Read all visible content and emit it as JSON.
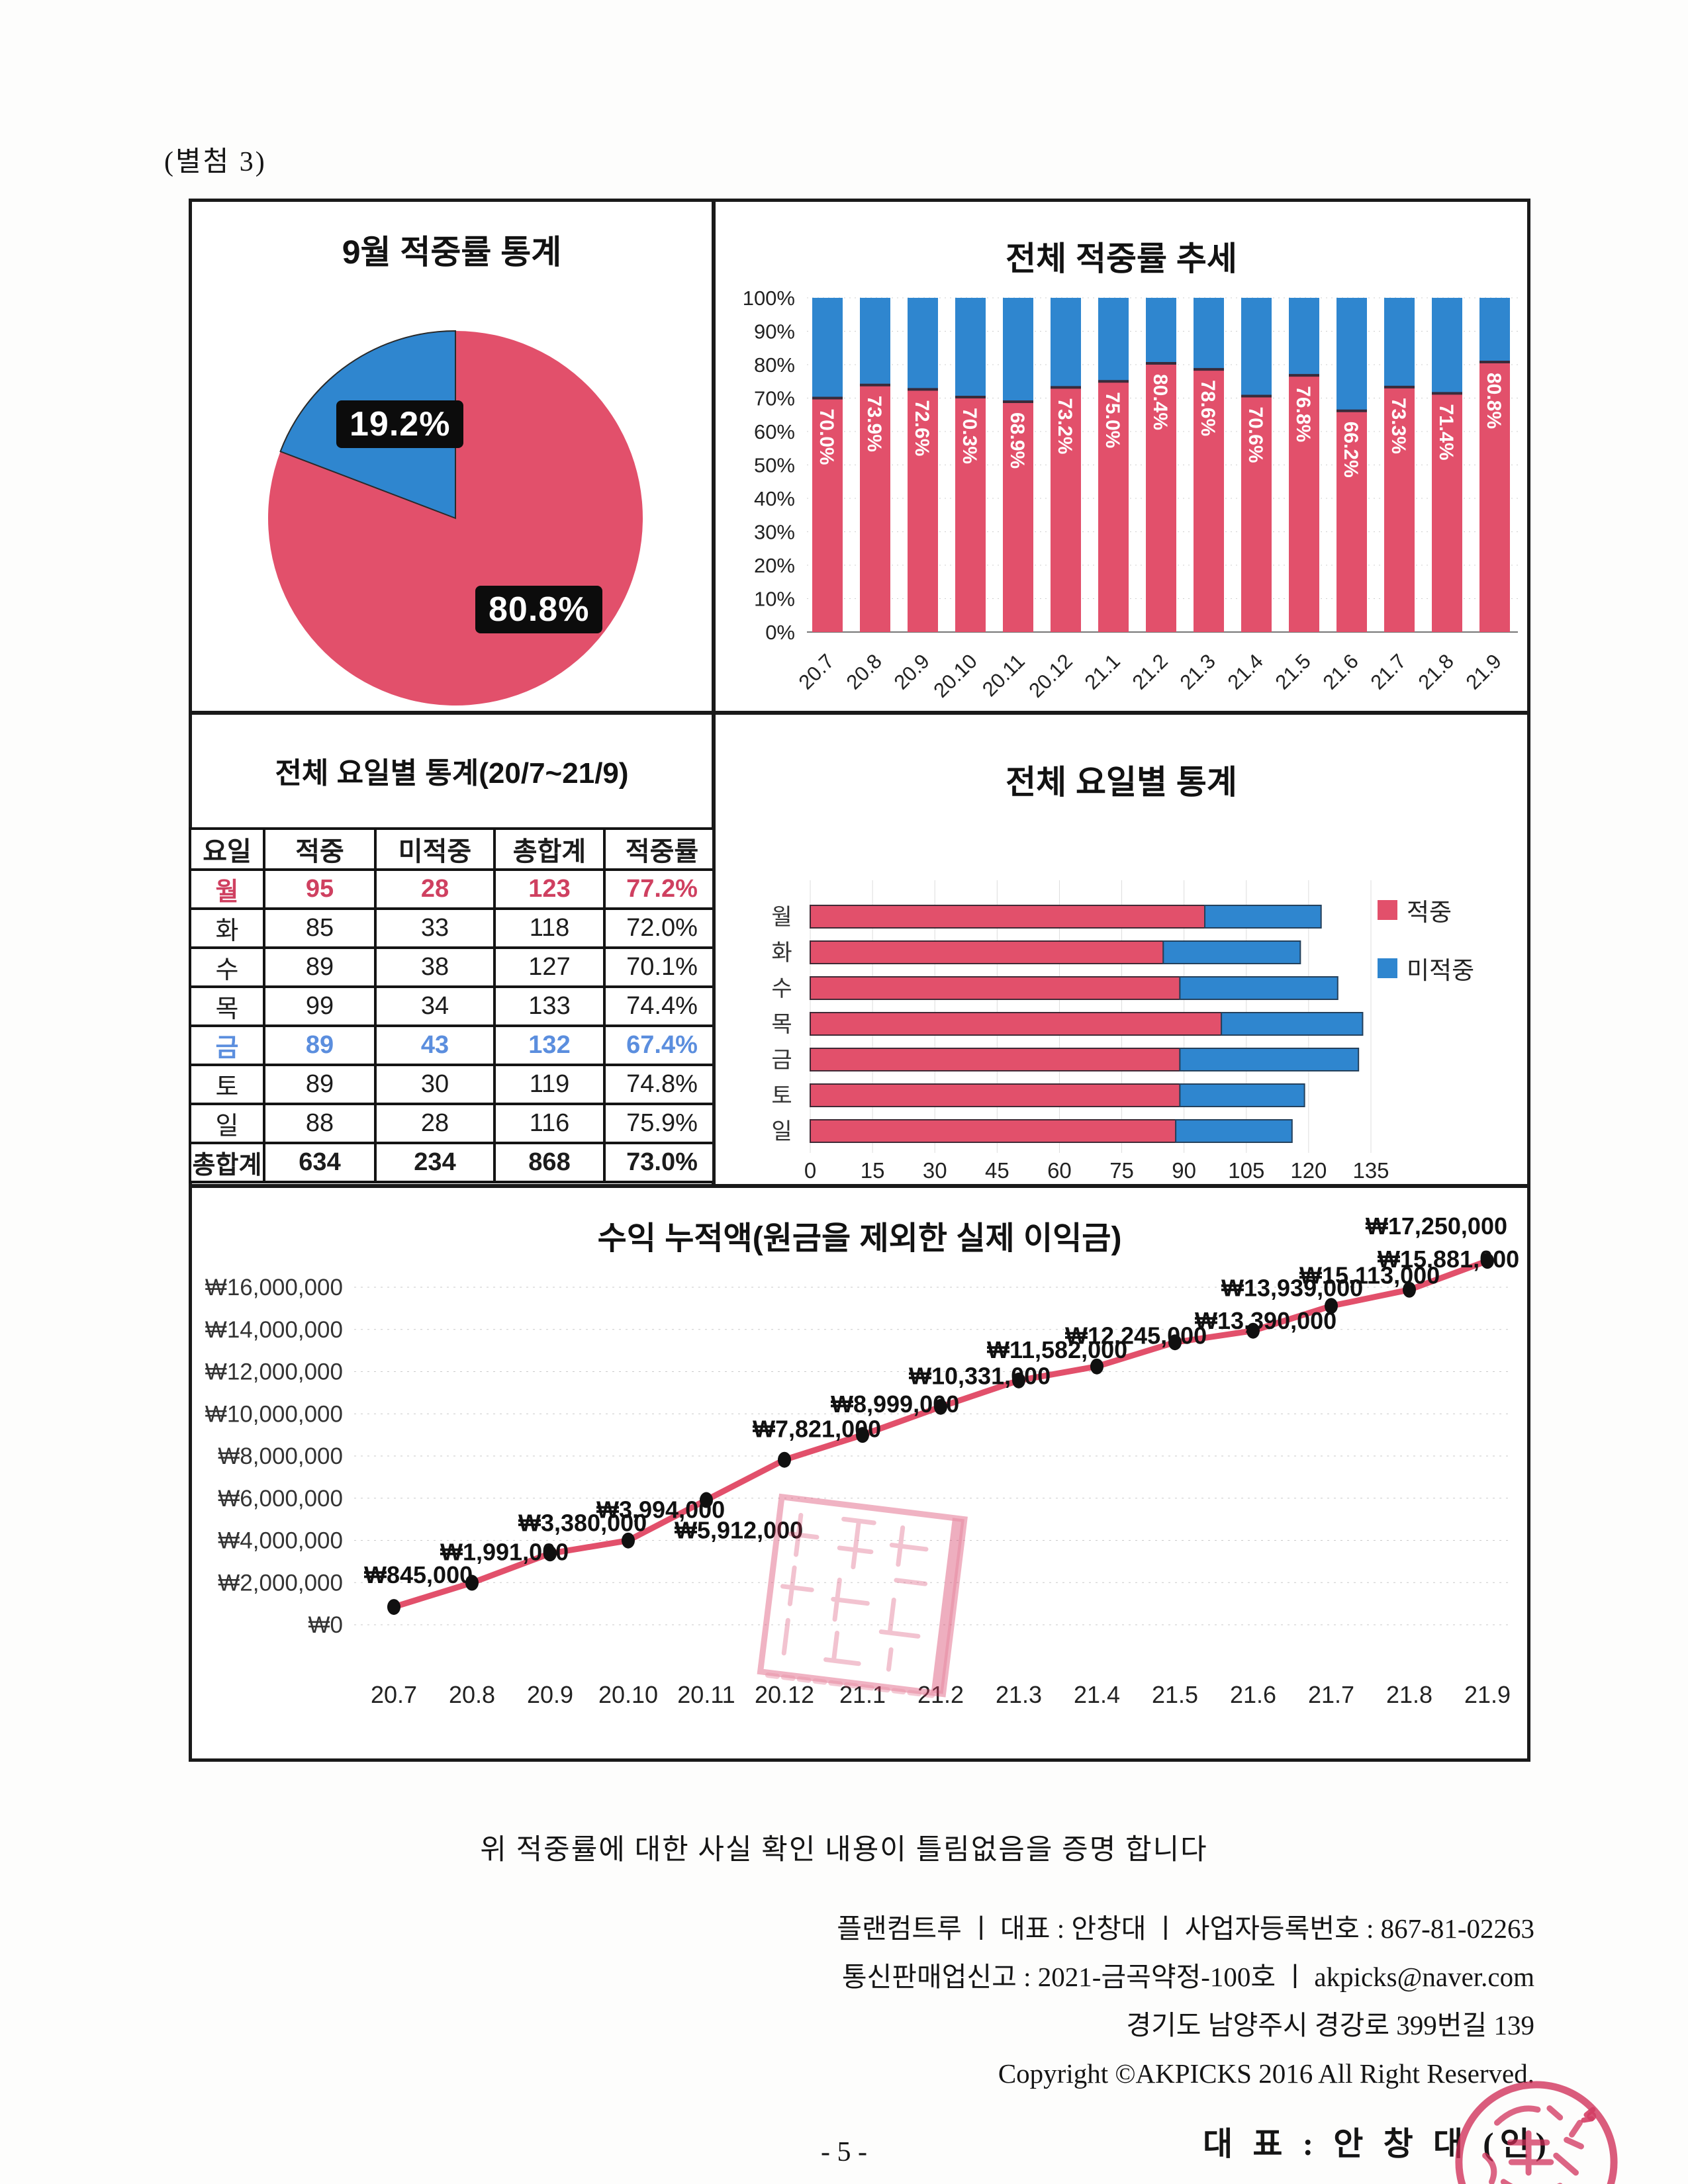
{
  "page": {
    "attachment_label": "(별첨 3)",
    "page_number": "- 5 -"
  },
  "colors": {
    "hit_red": "#e2506b",
    "miss_blue": "#2f86cf",
    "table_mon_red": "#cf4060",
    "table_fri_blue": "#5b8ede",
    "seal_red": "#cf2b55",
    "grid_gray": "#c9c9c9"
  },
  "chart_data": [
    {
      "type": "pie",
      "title": "9월 적중률 통계",
      "slices": [
        {
          "name": "적중",
          "label": "80.8%",
          "value": 80.8,
          "color": "hit_red"
        },
        {
          "name": "미적중",
          "label": "19.2%",
          "value": 19.2,
          "color": "miss_blue"
        }
      ]
    },
    {
      "type": "bar",
      "subtype": "stacked-column-100",
      "title": "전체 적중률 추세",
      "categories": [
        "20.7",
        "20.8",
        "20.9",
        "20.10",
        "20.11",
        "20.12",
        "21.1",
        "21.2",
        "21.3",
        "21.4",
        "21.5",
        "21.6",
        "21.7",
        "21.8",
        "21.9"
      ],
      "series": [
        {
          "name": "적중",
          "values": [
            70.0,
            73.9,
            72.6,
            70.3,
            68.9,
            73.2,
            75.0,
            80.4,
            78.6,
            70.6,
            76.8,
            66.2,
            73.3,
            71.4,
            80.8
          ]
        },
        {
          "name": "미적중",
          "values": [
            30.0,
            26.1,
            27.4,
            29.7,
            31.1,
            26.8,
            25.0,
            19.6,
            21.4,
            29.4,
            23.2,
            33.8,
            26.7,
            28.6,
            19.2
          ]
        }
      ],
      "bar_labels": [
        "70.0%",
        "73.9%",
        "72.6%",
        "70.3%",
        "68.9%",
        "73.2%",
        "75.0%",
        "80.4%",
        "78.6%",
        "70.6%",
        "76.8%",
        "66.2%",
        "73.3%",
        "71.4%",
        "80.8%"
      ],
      "ylim": [
        0,
        100
      ],
      "yticks": [
        "0%",
        "10%",
        "20%",
        "30%",
        "40%",
        "50%",
        "60%",
        "70%",
        "80%",
        "90%",
        "100%"
      ]
    },
    {
      "type": "table",
      "title": "전체 요일별 통계(20/7~21/9)",
      "headers": [
        "요일",
        "적중",
        "미적중",
        "총합계",
        "적중률"
      ],
      "rows": [
        {
          "cells": [
            "월",
            "95",
            "28",
            "123",
            "77.2%"
          ],
          "style": "mon"
        },
        {
          "cells": [
            "화",
            "85",
            "33",
            "118",
            "72.0%"
          ],
          "style": null
        },
        {
          "cells": [
            "수",
            "89",
            "38",
            "127",
            "70.1%"
          ],
          "style": null
        },
        {
          "cells": [
            "목",
            "99",
            "34",
            "133",
            "74.4%"
          ],
          "style": null
        },
        {
          "cells": [
            "금",
            "89",
            "43",
            "132",
            "67.4%"
          ],
          "style": "fri"
        },
        {
          "cells": [
            "토",
            "89",
            "30",
            "119",
            "74.8%"
          ],
          "style": null
        },
        {
          "cells": [
            "일",
            "88",
            "28",
            "116",
            "75.9%"
          ],
          "style": null
        },
        {
          "cells": [
            "총합계",
            "634",
            "234",
            "868",
            "73.0%"
          ],
          "style": "total"
        }
      ]
    },
    {
      "type": "bar",
      "subtype": "stacked-horizontal",
      "title": "전체 요일별 통계",
      "categories": [
        "월",
        "화",
        "수",
        "목",
        "금",
        "토",
        "일"
      ],
      "series": [
        {
          "name": "적중",
          "values": [
            95,
            85,
            89,
            99,
            89,
            89,
            88
          ]
        },
        {
          "name": "미적중",
          "values": [
            28,
            33,
            38,
            34,
            43,
            30,
            28
          ]
        }
      ],
      "xlim": [
        0,
        135
      ],
      "xticks": [
        "0",
        "15",
        "30",
        "45",
        "60",
        "75",
        "90",
        "105",
        "120",
        "135"
      ],
      "legend_position": "right"
    },
    {
      "type": "line",
      "title": "수익 누적액(원금을 제외한 실제 이익금)",
      "x": [
        "20.7",
        "20.8",
        "20.9",
        "20.10",
        "20.11",
        "20.12",
        "21.1",
        "21.2",
        "21.3",
        "21.4",
        "21.5",
        "21.6",
        "21.7",
        "21.8",
        "21.9"
      ],
      "values": [
        845000,
        1991000,
        3380000,
        3994000,
        5912000,
        7821000,
        8999000,
        10331000,
        11582000,
        12245000,
        13390000,
        13939000,
        15113000,
        15881000,
        17250000
      ],
      "point_labels": [
        "₩845,000",
        "₩1,991,000",
        "₩3,380,000",
        "₩3,994,000",
        "₩5,912,000",
        "₩7,821,000",
        "₩8,999,000",
        "₩10,331,000",
        "₩11,582,000",
        "₩12,245,000",
        "₩13,390,000",
        "₩13,939,000",
        "₩15,113,000",
        "₩15,881,000",
        "₩17,250,000"
      ],
      "ylim": [
        0,
        16000000
      ],
      "yticks": [
        "₩0",
        "₩2,000,000",
        "₩4,000,000",
        "₩6,000,000",
        "₩8,000,000",
        "₩10,000,000",
        "₩12,000,000",
        "₩14,000,000",
        "₩16,000,000"
      ]
    }
  ],
  "footer": {
    "certification": "위 적중률에 대한 사실 확인 내용이 틀림없음을 증명 합니다",
    "company_info_1": "플랜컴트루 ㅣ 대표 : 안창대 ㅣ 사업자등록번호 : 867-81-02263",
    "company_info_2": "통신판매업신고 : 2021-금곡약정-100호 ㅣ akpicks@naver.com",
    "address": "경기도 남양주시 경강로 399번길 139",
    "copyright": "Copyright ©AKPICKS 2016 All Right Reserved.",
    "signature": "대 표 : 안 창 대  (인)"
  }
}
